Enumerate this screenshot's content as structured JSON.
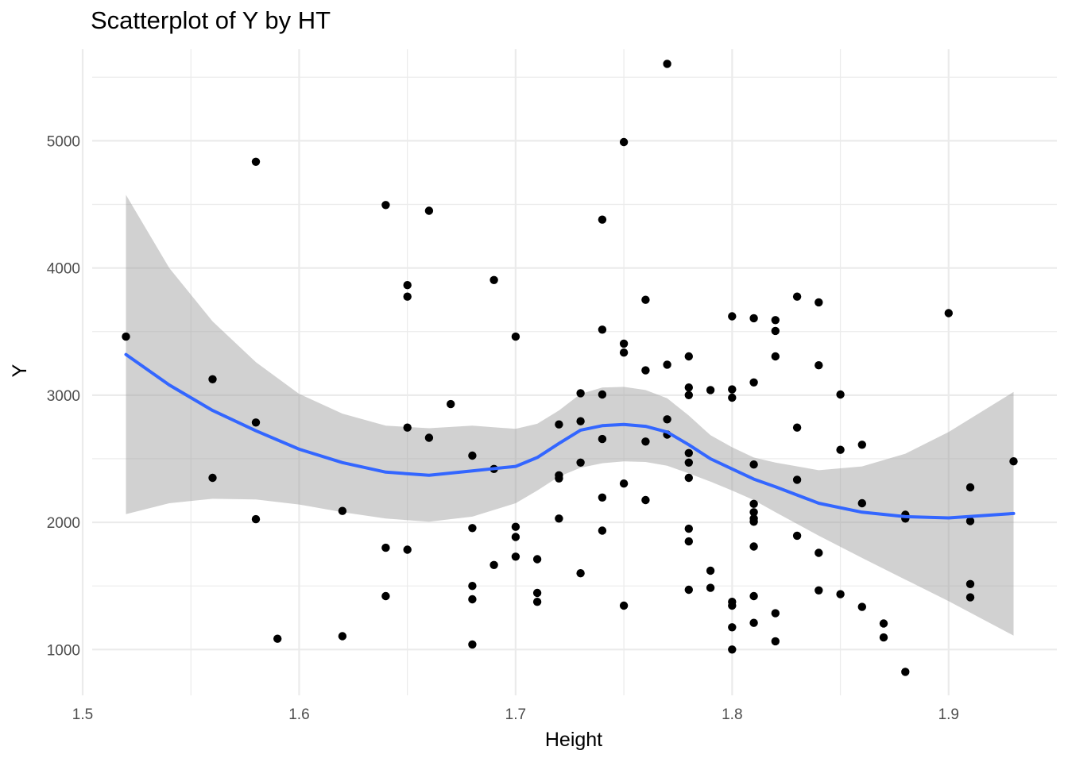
{
  "chart_data": {
    "type": "scatter",
    "title": "Scatterplot of Y by HT",
    "xlabel": "Height",
    "ylabel": "Y",
    "xlim": [
      1.5,
      1.95
    ],
    "ylim": [
      640,
      5720
    ],
    "xticks": [
      "1.5",
      "1.6",
      "1.7",
      "1.8",
      "1.9"
    ],
    "xtick_values": [
      1.5,
      1.6,
      1.7,
      1.8,
      1.9
    ],
    "yticks": [
      "1000",
      "2000",
      "3000",
      "4000",
      "5000"
    ],
    "ytick_values": [
      1000,
      2000,
      3000,
      4000,
      5000
    ],
    "grid": true,
    "colors": {
      "point": "#000000",
      "smooth": "#3366ff",
      "band": "#999999",
      "grid": "#ebebeb"
    },
    "points": [
      [
        1.52,
        3460
      ],
      [
        1.56,
        3125
      ],
      [
        1.56,
        2350
      ],
      [
        1.58,
        4835
      ],
      [
        1.58,
        2785
      ],
      [
        1.58,
        2025
      ],
      [
        1.59,
        1085
      ],
      [
        1.62,
        2090
      ],
      [
        1.62,
        1105
      ],
      [
        1.64,
        4495
      ],
      [
        1.64,
        1800
      ],
      [
        1.64,
        1420
      ],
      [
        1.65,
        3865
      ],
      [
        1.65,
        3775
      ],
      [
        1.65,
        2745
      ],
      [
        1.65,
        1785
      ],
      [
        1.66,
        4450
      ],
      [
        1.66,
        2665
      ],
      [
        1.67,
        2930
      ],
      [
        1.68,
        2525
      ],
      [
        1.68,
        1955
      ],
      [
        1.68,
        1500
      ],
      [
        1.68,
        1395
      ],
      [
        1.68,
        1040
      ],
      [
        1.69,
        3905
      ],
      [
        1.69,
        2420
      ],
      [
        1.69,
        1665
      ],
      [
        1.7,
        3460
      ],
      [
        1.7,
        1965
      ],
      [
        1.7,
        1885
      ],
      [
        1.7,
        1730
      ],
      [
        1.71,
        1710
      ],
      [
        1.71,
        1445
      ],
      [
        1.71,
        1375
      ],
      [
        1.72,
        2770
      ],
      [
        1.72,
        2370
      ],
      [
        1.72,
        2345
      ],
      [
        1.72,
        2030
      ],
      [
        1.73,
        3015
      ],
      [
        1.73,
        2795
      ],
      [
        1.73,
        2470
      ],
      [
        1.73,
        1600
      ],
      [
        1.74,
        4380
      ],
      [
        1.74,
        3515
      ],
      [
        1.74,
        3005
      ],
      [
        1.74,
        2655
      ],
      [
        1.74,
        2195
      ],
      [
        1.74,
        1935
      ],
      [
        1.75,
        4990
      ],
      [
        1.75,
        3405
      ],
      [
        1.75,
        3335
      ],
      [
        1.75,
        2305
      ],
      [
        1.75,
        1345
      ],
      [
        1.76,
        3750
      ],
      [
        1.76,
        3195
      ],
      [
        1.76,
        2635
      ],
      [
        1.76,
        2175
      ],
      [
        1.77,
        5605
      ],
      [
        1.77,
        3240
      ],
      [
        1.77,
        2810
      ],
      [
        1.77,
        2690
      ],
      [
        1.78,
        3305
      ],
      [
        1.78,
        3060
      ],
      [
        1.78,
        3000
      ],
      [
        1.78,
        2545
      ],
      [
        1.78,
        2470
      ],
      [
        1.78,
        2350
      ],
      [
        1.78,
        1950
      ],
      [
        1.78,
        1850
      ],
      [
        1.78,
        1470
      ],
      [
        1.79,
        3040
      ],
      [
        1.79,
        1620
      ],
      [
        1.79,
        1485
      ],
      [
        1.8,
        3620
      ],
      [
        1.8,
        3045
      ],
      [
        1.8,
        2980
      ],
      [
        1.8,
        1375
      ],
      [
        1.8,
        1345
      ],
      [
        1.8,
        1175
      ],
      [
        1.8,
        1000
      ],
      [
        1.81,
        3605
      ],
      [
        1.81,
        3100
      ],
      [
        1.81,
        2455
      ],
      [
        1.81,
        2145
      ],
      [
        1.81,
        2080
      ],
      [
        1.81,
        2030
      ],
      [
        1.81,
        2005
      ],
      [
        1.81,
        1810
      ],
      [
        1.81,
        1420
      ],
      [
        1.81,
        1210
      ],
      [
        1.82,
        3590
      ],
      [
        1.82,
        3505
      ],
      [
        1.82,
        3305
      ],
      [
        1.82,
        1285
      ],
      [
        1.82,
        1065
      ],
      [
        1.83,
        3775
      ],
      [
        1.83,
        2745
      ],
      [
        1.83,
        2335
      ],
      [
        1.83,
        1895
      ],
      [
        1.84,
        3730
      ],
      [
        1.84,
        3235
      ],
      [
        1.84,
        1760
      ],
      [
        1.84,
        1465
      ],
      [
        1.85,
        3005
      ],
      [
        1.85,
        2570
      ],
      [
        1.85,
        1435
      ],
      [
        1.86,
        2610
      ],
      [
        1.86,
        2150
      ],
      [
        1.86,
        1335
      ],
      [
        1.87,
        1205
      ],
      [
        1.87,
        1095
      ],
      [
        1.88,
        2060
      ],
      [
        1.88,
        2030
      ],
      [
        1.88,
        825
      ],
      [
        1.9,
        3645
      ],
      [
        1.91,
        2275
      ],
      [
        1.91,
        2010
      ],
      [
        1.91,
        1515
      ],
      [
        1.91,
        1410
      ],
      [
        1.93,
        2480
      ]
    ],
    "smooth": {
      "x": [
        1.52,
        1.54,
        1.56,
        1.58,
        1.6,
        1.62,
        1.64,
        1.66,
        1.68,
        1.7,
        1.71,
        1.72,
        1.73,
        1.74,
        1.75,
        1.76,
        1.77,
        1.78,
        1.79,
        1.8,
        1.81,
        1.82,
        1.84,
        1.86,
        1.88,
        1.9,
        1.93
      ],
      "y": [
        3320,
        3080,
        2880,
        2720,
        2575,
        2470,
        2395,
        2370,
        2405,
        2440,
        2510,
        2620,
        2725,
        2760,
        2770,
        2755,
        2710,
        2610,
        2500,
        2420,
        2340,
        2280,
        2150,
        2080,
        2045,
        2035,
        2070
      ],
      "lower": [
        2065,
        2150,
        2185,
        2180,
        2140,
        2080,
        2030,
        2005,
        2045,
        2150,
        2250,
        2360,
        2430,
        2465,
        2480,
        2475,
        2445,
        2385,
        2320,
        2250,
        2175,
        2080,
        1895,
        1720,
        1550,
        1380,
        1110
      ],
      "upper": [
        4575,
        4000,
        3580,
        3260,
        3010,
        2855,
        2760,
        2740,
        2760,
        2735,
        2775,
        2880,
        3010,
        3060,
        3065,
        3040,
        2975,
        2840,
        2685,
        2590,
        2510,
        2470,
        2410,
        2440,
        2540,
        2710,
        3025
      ]
    }
  }
}
